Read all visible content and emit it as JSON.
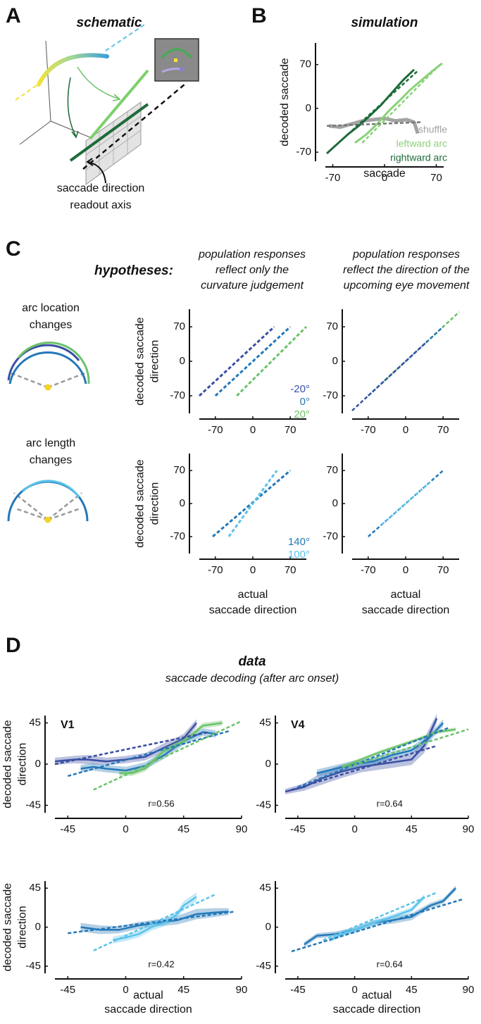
{
  "figure": {
    "panel_labels": [
      "A",
      "B",
      "C",
      "D"
    ],
    "schematic_title": "schematic",
    "readout_label": [
      "saccade direction",
      "readout axis"
    ],
    "hypotheses": "hypotheses:",
    "column_headers": [
      [
        "population responses",
        "reflect only the",
        "curvature judgement"
      ],
      [
        "population responses",
        "reflect the direction of  the",
        "upcoming eye movement"
      ]
    ],
    "row_labels": [
      [
        "arc location",
        "changes"
      ],
      [
        "arc length",
        "changes"
      ]
    ],
    "data_title": "data",
    "data_subtitle": "saccade decoding (after arc onset)"
  },
  "chart_data": [
    {
      "type": "line",
      "title": "simulation",
      "xlabel": [
        "saccade"
      ],
      "ylabel": [
        "decoded saccade"
      ],
      "xlim": [
        -80,
        80
      ],
      "ylim": [
        -80,
        100
      ],
      "xticks": [
        -70,
        0,
        70
      ],
      "yticks": [
        -70,
        0,
        70
      ],
      "legend": "lower right",
      "series": [
        {
          "name": "shuffle",
          "color": "#a3a3a3",
          "x": [
            -75,
            -60,
            -45,
            -30,
            -15,
            0,
            15,
            30,
            40,
            45
          ],
          "values": [
            -28,
            -30,
            -25,
            -20,
            -18,
            -16,
            -20,
            -18,
            -22,
            -40
          ]
        },
        {
          "name": "leftward arc",
          "color": "#8ad17a",
          "x": [
            -40,
            -25,
            -10,
            5,
            20,
            35,
            50,
            65,
            78
          ],
          "values": [
            -55,
            -42,
            -25,
            -5,
            12,
            30,
            45,
            60,
            72
          ]
        },
        {
          "name": "rightward arc",
          "color": "#1e6b3a",
          "x": [
            -78,
            -65,
            -50,
            -35,
            -20,
            -5,
            10,
            25,
            40
          ],
          "values": [
            -72,
            -58,
            -42,
            -28,
            -12,
            5,
            25,
            45,
            62
          ]
        },
        {
          "color": "#777777",
          "dashed": true,
          "x": [
            -78,
            50
          ],
          "values": [
            -28,
            -22
          ]
        },
        {
          "color": "#8ad17a",
          "dashed": true,
          "x": [
            -30,
            75
          ],
          "values": [
            -55,
            70
          ]
        },
        {
          "color": "#1e6b3a",
          "dashed": true,
          "x": [
            -78,
            45
          ],
          "values": [
            -72,
            60
          ]
        }
      ]
    },
    {
      "type": "line",
      "ylabel": [
        "decoded saccade",
        "direction"
      ],
      "xlim": [
        -100,
        100
      ],
      "ylim": [
        -100,
        100
      ],
      "xticks": [
        -70,
        0,
        70
      ],
      "yticks": [
        -70,
        0,
        70
      ],
      "legend": "lower right",
      "series": [
        {
          "name": "-20°",
          "color": "#3b4fa3",
          "dashed": true,
          "x": [
            -100,
            40
          ],
          "values": [
            -70,
            70
          ]
        },
        {
          "name": "0°",
          "color": "#2478b8",
          "dashed": true,
          "x": [
            -70,
            70
          ],
          "values": [
            -70,
            70
          ]
        },
        {
          "name": "20°",
          "color": "#6cc26a",
          "dashed": true,
          "x": [
            -30,
            100
          ],
          "values": [
            -70,
            70
          ]
        }
      ]
    },
    {
      "type": "line",
      "xlim": [
        -100,
        100
      ],
      "ylim": [
        -100,
        100
      ],
      "xticks": [
        -70,
        0,
        70
      ],
      "yticks": [
        -70,
        0,
        70
      ],
      "series": [
        {
          "color": "#6cc26a",
          "dashed": true,
          "x": [
            -40,
            100
          ],
          "values": [
            -40,
            100
          ]
        },
        {
          "color": "#2478b8",
          "dashed": true,
          "x": [
            -70,
            70
          ],
          "values": [
            -70,
            70
          ]
        },
        {
          "color": "#3b4fa3",
          "dashed": true,
          "x": [
            -100,
            40
          ],
          "values": [
            -100,
            40
          ]
        }
      ]
    },
    {
      "type": "line",
      "ylabel": [
        "decoded saccade",
        "direction"
      ],
      "xlabel": [
        "actual",
        "saccade direction"
      ],
      "xlim": [
        -100,
        100
      ],
      "ylim": [
        -100,
        100
      ],
      "xticks": [
        -70,
        0,
        70
      ],
      "yticks": [
        -70,
        0,
        70
      ],
      "legend": "lower right",
      "series": [
        {
          "name": "140°",
          "color": "#2478b8",
          "dashed": true,
          "x": [
            -75,
            70
          ],
          "values": [
            -70,
            70
          ]
        },
        {
          "name": "100°",
          "color": "#5bc3ea",
          "dashed": true,
          "x": [
            -45,
            45
          ],
          "values": [
            -70,
            70
          ]
        }
      ]
    },
    {
      "type": "line",
      "xlabel": [
        "actual",
        "saccade direction"
      ],
      "xlim": [
        -100,
        100
      ],
      "ylim": [
        -100,
        100
      ],
      "xticks": [
        -70,
        0,
        70
      ],
      "yticks": [
        -70,
        0,
        70
      ],
      "series": [
        {
          "color": "#2478b8",
          "dashed": true,
          "x": [
            -70,
            70
          ],
          "values": [
            -70,
            70
          ]
        },
        {
          "color": "#5bc3ea",
          "dashed": true,
          "x": [
            -45,
            45
          ],
          "values": [
            -45,
            45
          ]
        }
      ]
    },
    {
      "type": "line",
      "title": "V1",
      "ylabel": [
        "decoded saccade",
        "direction"
      ],
      "annotation": "r=0.56",
      "xlim": [
        -55,
        90
      ],
      "ylim": [
        -50,
        50
      ],
      "xticks": [
        -45,
        0,
        45,
        90
      ],
      "yticks": [
        -45,
        0,
        45
      ],
      "series": [
        {
          "color": "#3b4fa3",
          "x": [
            -55,
            -40,
            -30,
            -15,
            0,
            15,
            30,
            45,
            55
          ],
          "values": [
            3,
            5,
            5,
            3,
            5,
            8,
            18,
            28,
            45
          ],
          "err": [
            4,
            4,
            5,
            4,
            4,
            4,
            5,
            5,
            4
          ]
        },
        {
          "color": "#2478b8",
          "x": [
            -35,
            -25,
            -15,
            0,
            15,
            30,
            45,
            60,
            70
          ],
          "values": [
            -5,
            -3,
            -5,
            -7,
            -2,
            10,
            25,
            35,
            33
          ],
          "err": [
            4,
            4,
            4,
            4,
            4,
            4,
            4,
            4,
            4
          ]
        },
        {
          "color": "#6cc26a",
          "x": [
            -5,
            5,
            15,
            30,
            45,
            60,
            75
          ],
          "values": [
            -10,
            -10,
            -5,
            15,
            25,
            42,
            45
          ],
          "err": [
            3,
            3,
            3,
            3,
            3,
            3,
            3
          ]
        },
        {
          "color": "#3b4fa3",
          "dashed": true,
          "x": [
            -55,
            65
          ],
          "values": [
            0,
            35
          ]
        },
        {
          "color": "#2478b8",
          "dashed": true,
          "x": [
            -45,
            80
          ],
          "values": [
            -13,
            36
          ]
        },
        {
          "color": "#6cc26a",
          "dashed": true,
          "x": [
            -25,
            90
          ],
          "values": [
            -28,
            47
          ]
        }
      ]
    },
    {
      "type": "line",
      "title": "V4",
      "annotation": "r=0.64",
      "xlim": [
        -55,
        90
      ],
      "ylim": [
        -50,
        50
      ],
      "xticks": [
        -45,
        0,
        45,
        90
      ],
      "yticks": [
        -45,
        0,
        45
      ],
      "series": [
        {
          "color": "#3b4fa3",
          "x": [
            -55,
            -40,
            -25,
            -10,
            5,
            20,
            35,
            45,
            55,
            65
          ],
          "values": [
            -30,
            -25,
            -15,
            -8,
            -3,
            0,
            3,
            5,
            20,
            50
          ],
          "err": [
            3,
            4,
            7,
            7,
            6,
            6,
            6,
            6,
            8,
            5
          ]
        },
        {
          "color": "#2478b8",
          "x": [
            -30,
            -15,
            0,
            15,
            30,
            45,
            60,
            70
          ],
          "values": [
            -10,
            -5,
            0,
            3,
            10,
            15,
            30,
            45
          ],
          "err": [
            4,
            4,
            4,
            4,
            4,
            4,
            4,
            4
          ]
        },
        {
          "color": "#6cc26a",
          "x": [
            -10,
            5,
            20,
            35,
            50,
            65,
            80
          ],
          "values": [
            -3,
            5,
            13,
            20,
            27,
            35,
            38
          ],
          "err": [
            2,
            2,
            2,
            2,
            2,
            2,
            2
          ]
        },
        {
          "color": "#3b4fa3",
          "dashed": true,
          "x": [
            -50,
            65
          ],
          "values": [
            -28,
            20
          ]
        },
        {
          "color": "#2478b8",
          "dashed": true,
          "x": [
            -45,
            75
          ],
          "values": [
            -25,
            40
          ]
        },
        {
          "color": "#6cc26a",
          "dashed": true,
          "x": [
            -5,
            90
          ],
          "values": [
            -3,
            38
          ]
        }
      ]
    },
    {
      "type": "line",
      "ylabel": [
        "decoded saccade",
        "direction"
      ],
      "xlabel": [
        "actual",
        "saccade direction"
      ],
      "annotation": "r=0.42",
      "xlim": [
        -55,
        90
      ],
      "ylim": [
        -50,
        50
      ],
      "xticks": [
        -45,
        0,
        45,
        90
      ],
      "yticks": [
        -45,
        0,
        45
      ],
      "series": [
        {
          "color": "#2478b8",
          "x": [
            -35,
            -20,
            -5,
            10,
            25,
            40,
            55,
            70,
            80
          ],
          "values": [
            0,
            -3,
            -3,
            2,
            5,
            8,
            15,
            17,
            18
          ],
          "err": [
            5,
            5,
            4,
            4,
            4,
            5,
            6,
            5,
            4
          ]
        },
        {
          "color": "#5bc3ea",
          "x": [
            -10,
            0,
            10,
            20,
            30,
            40,
            45,
            55
          ],
          "values": [
            -15,
            -12,
            -8,
            0,
            5,
            15,
            25,
            35
          ],
          "err": [
            4,
            4,
            4,
            4,
            4,
            4,
            5,
            5
          ]
        },
        {
          "color": "#2478b8",
          "dashed": true,
          "x": [
            -45,
            85
          ],
          "values": [
            -7,
            18
          ]
        },
        {
          "color": "#5bc3ea",
          "dashed": true,
          "x": [
            -25,
            70
          ],
          "values": [
            -27,
            38
          ]
        }
      ]
    },
    {
      "type": "line",
      "xlabel": [
        "actual",
        "saccade direction"
      ],
      "annotation": "r=0.64",
      "xlim": [
        -55,
        90
      ],
      "ylim": [
        -50,
        50
      ],
      "xticks": [
        -45,
        0,
        45,
        90
      ],
      "yticks": [
        -45,
        0,
        45
      ],
      "series": [
        {
          "color": "#2478b8",
          "x": [
            -40,
            -30,
            -15,
            0,
            15,
            30,
            45,
            60,
            70,
            80
          ],
          "values": [
            -20,
            -10,
            -8,
            -3,
            5,
            8,
            12,
            25,
            30,
            45
          ],
          "err": [
            3,
            3,
            3,
            3,
            3,
            4,
            4,
            3,
            3,
            3
          ]
        },
        {
          "color": "#5bc3ea",
          "x": [
            -20,
            -10,
            0,
            15,
            30,
            45,
            55
          ],
          "values": [
            -15,
            -8,
            -3,
            5,
            12,
            20,
            35
          ],
          "err": [
            3,
            3,
            3,
            3,
            3,
            3,
            3
          ]
        },
        {
          "color": "#2478b8",
          "dashed": true,
          "x": [
            -50,
            85
          ],
          "values": [
            -28,
            32
          ]
        },
        {
          "color": "#5bc3ea",
          "dashed": true,
          "x": [
            -25,
            65
          ],
          "values": [
            -15,
            40
          ]
        }
      ]
    }
  ]
}
